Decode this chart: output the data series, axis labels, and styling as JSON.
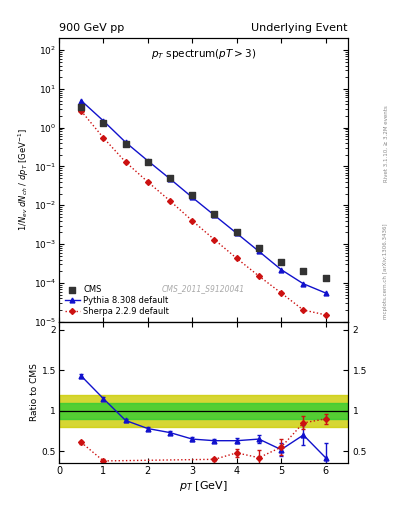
{
  "title_left": "900 GeV pp",
  "title_right": "Underlying Event",
  "plot_title": "p_{T} spectrum (pT > 3)",
  "watermark": "CMS_2011_S9120041",
  "right_label_top": "Rivet 3.1.10, ≥ 3.2M events",
  "right_label_bot": "mcplots.cern.ch [arXiv:1306.3436]",
  "cms_x": [
    0.5,
    1.0,
    1.5,
    2.0,
    2.5,
    3.0,
    3.5,
    4.0,
    4.5,
    5.0,
    5.5,
    6.0
  ],
  "cms_y": [
    3.5,
    1.3,
    0.38,
    0.13,
    0.05,
    0.018,
    0.006,
    0.002,
    0.0008,
    0.00035,
    0.0002,
    0.00013
  ],
  "pythia_x": [
    0.5,
    1.0,
    1.5,
    2.0,
    2.5,
    3.0,
    3.5,
    4.0,
    4.5,
    5.0,
    5.5,
    6.0
  ],
  "pythia_y": [
    5.0,
    1.5,
    0.42,
    0.14,
    0.048,
    0.016,
    0.0055,
    0.0019,
    0.00065,
    0.00022,
    9.5e-05,
    5.5e-05
  ],
  "sherpa_x": [
    0.5,
    1.0,
    1.5,
    2.0,
    2.5,
    3.0,
    3.5,
    4.0,
    4.5,
    5.0,
    5.5,
    6.0
  ],
  "sherpa_y": [
    2.7,
    0.55,
    0.13,
    0.04,
    0.013,
    0.004,
    0.0013,
    0.00043,
    0.00015,
    5.5e-05,
    2e-05,
    1.5e-05
  ],
  "pythia_ratio_x": [
    0.5,
    1.0,
    1.5,
    2.0,
    2.5,
    3.0,
    3.5,
    4.0,
    4.5,
    5.0,
    5.5,
    6.0
  ],
  "pythia_ratio_y": [
    1.43,
    1.15,
    0.88,
    0.78,
    0.73,
    0.65,
    0.63,
    0.63,
    0.65,
    0.52,
    0.7,
    0.42
  ],
  "pythia_ratio_yerr": [
    0.02,
    0.02,
    0.02,
    0.02,
    0.02,
    0.02,
    0.02,
    0.03,
    0.05,
    0.08,
    0.12,
    0.18
  ],
  "sherpa_ratio_x": [
    0.5,
    1.0,
    3.5,
    4.0,
    4.5,
    5.0,
    5.5,
    6.0
  ],
  "sherpa_ratio_y": [
    0.61,
    0.38,
    0.4,
    0.48,
    0.42,
    0.55,
    0.85,
    0.9
  ],
  "sherpa_ratio_yerr": [
    0.02,
    0.02,
    0.02,
    0.05,
    0.1,
    0.1,
    0.08,
    0.06
  ],
  "cms_color": "#333333",
  "pythia_color": "#1111cc",
  "sherpa_color": "#cc1111",
  "green_color": "#33cc33",
  "yellow_color": "#cccc00",
  "ylim_main": [
    1e-05,
    200.0
  ],
  "ylim_ratio": [
    0.35,
    2.1
  ],
  "xlim": [
    0.0,
    6.5
  ]
}
